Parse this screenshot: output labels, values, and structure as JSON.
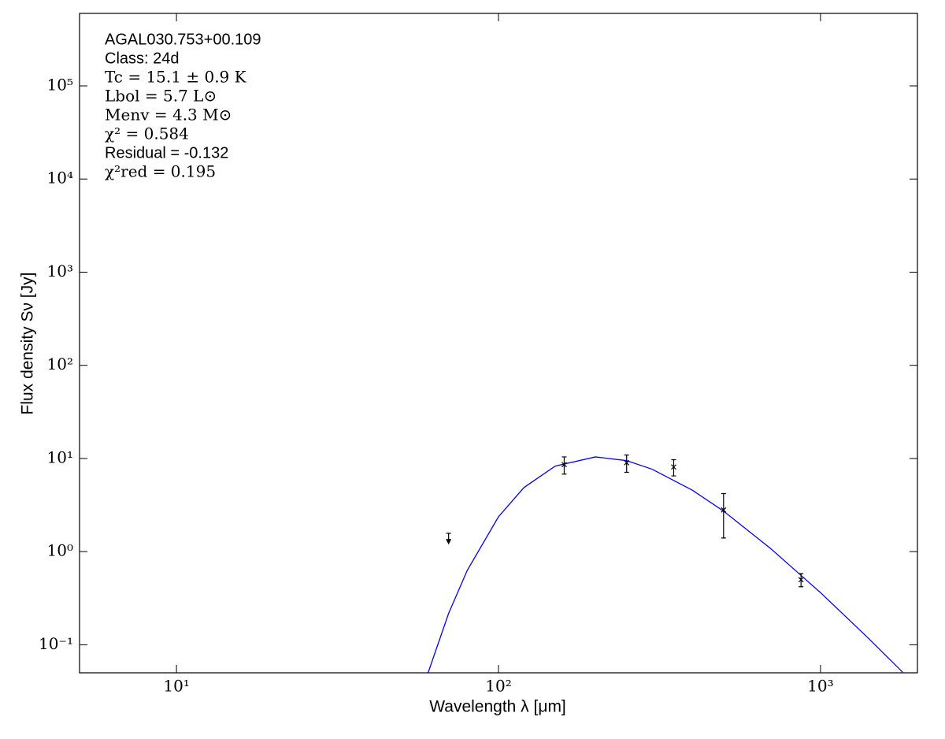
{
  "chart_data": {
    "type": "sed",
    "annotations": [
      "AGAL030.753+00.109",
      "Class: 24d",
      "Tc = 15.1 ± 0.9 K",
      "Lbol = 5.7 L⊙",
      "Menv = 4.3 M⊙",
      "χ² = 0.584",
      "Residual = -0.132",
      "χ²red = 0.195"
    ],
    "x_label": "Wavelength λ [μm]",
    "y_label": "Flux density Sν [Jy]",
    "xlim": [
      5,
      2000
    ],
    "ylim": [
      0.05,
      600000
    ],
    "x_log": true,
    "y_log": true,
    "xticks": [
      {
        "value": 10,
        "label": "10¹"
      },
      {
        "value": 100,
        "label": "10²"
      },
      {
        "value": 1000,
        "label": "10³"
      }
    ],
    "yticks": [
      {
        "value": 0.1,
        "label": "10⁻¹"
      },
      {
        "value": 1,
        "label": "10⁰"
      },
      {
        "value": 10,
        "label": "10¹"
      },
      {
        "value": 100,
        "label": "10²"
      },
      {
        "value": 1000,
        "label": "10³"
      },
      {
        "value": 10000,
        "label": "10⁴"
      },
      {
        "value": 100000,
        "label": "10⁵"
      }
    ],
    "model": {
      "color": "#0000ff",
      "x": [
        60,
        70,
        80,
        100,
        120,
        150,
        200,
        250,
        300,
        400,
        500,
        700,
        1000,
        1400,
        1800
      ],
      "values": [
        0.0465,
        0.217,
        0.63,
        2.37,
        4.88,
        8.28,
        10.4,
        9.48,
        7.67,
        4.57,
        2.72,
        1.08,
        0.363,
        0.12,
        0.0507
      ]
    },
    "points": {
      "color": "#000000",
      "x": [
        160,
        250,
        350,
        500,
        870
      ],
      "values": [
        8.6,
        9.0,
        8.1,
        2.8,
        0.5
      ],
      "errors": [
        1.8,
        1.9,
        1.6,
        1.4,
        0.08
      ]
    },
    "upper_limits": {
      "color": "#000000",
      "x": [
        70
      ],
      "values": [
        1.4
      ]
    }
  }
}
